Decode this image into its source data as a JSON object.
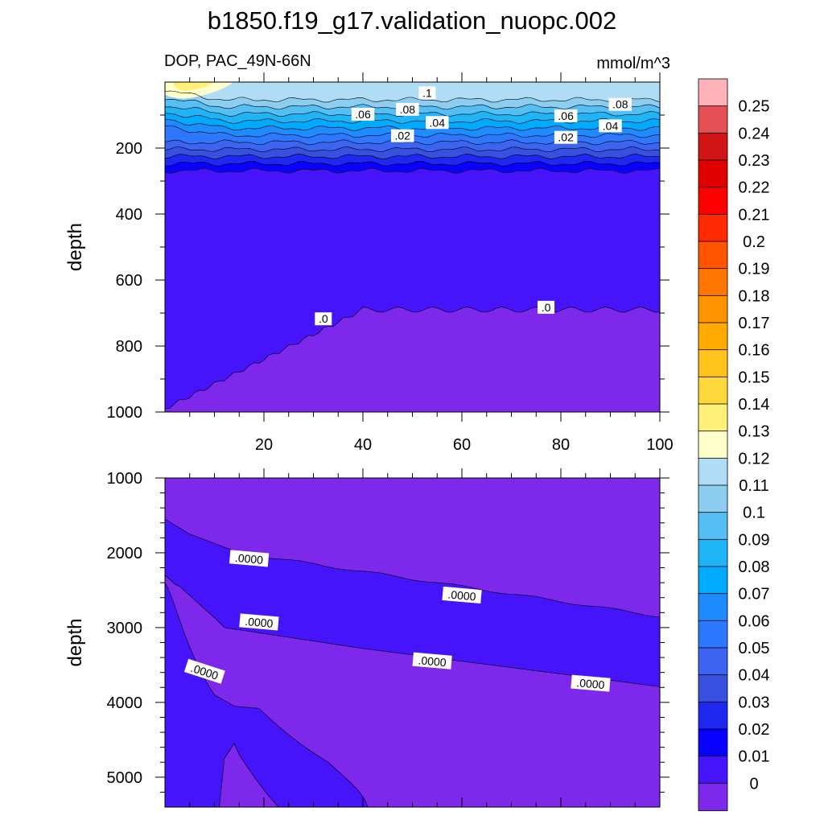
{
  "figure_title": "b1850.f19_g17.validation_nuopc.002",
  "panel_label": "DOP, PAC_49N-66N",
  "units": "mmol/m^3",
  "chart_data": [
    {
      "type": "heatmap",
      "panel": "upper",
      "title": "DOP, PAC_49N-66N",
      "units": "mmol/m^3",
      "xlabel": "",
      "ylabel": "depth",
      "xlim": [
        0,
        100
      ],
      "ylim": [
        1000,
        0
      ],
      "y_inverted": true,
      "xticks": [
        "20",
        "40",
        "60",
        "80",
        "100"
      ],
      "yticks": [
        "200",
        "400",
        "600",
        "800",
        "1000"
      ],
      "contour_levels": [
        0,
        0.01,
        0.02,
        0.03,
        0.04,
        0.05,
        0.06,
        0.07,
        0.08,
        0.09,
        0.1,
        0.11,
        0.12,
        0.13,
        0.14
      ],
      "contour_labels": [
        {
          "text": ".1",
          "x": 53,
          "y": 35
        },
        {
          "text": ".08",
          "x": 92,
          "y": 70
        },
        {
          "text": ".06",
          "x": 40,
          "y": 100
        },
        {
          "text": ".08",
          "x": 49,
          "y": 85
        },
        {
          "text": ".06",
          "x": 81,
          "y": 105
        },
        {
          "text": ".04",
          "x": 55,
          "y": 125
        },
        {
          "text": ".04",
          "x": 90,
          "y": 135
        },
        {
          "text": ".02",
          "x": 48,
          "y": 165
        },
        {
          "text": ".02",
          "x": 81,
          "y": 170
        },
        {
          "text": ".0",
          "x": 32,
          "y": 720
        },
        {
          "text": ".0",
          "x": 77,
          "y": 685
        }
      ],
      "profile_at_x60": [
        {
          "depth": 20,
          "value": 0.115
        },
        {
          "depth": 60,
          "value": 0.09
        },
        {
          "depth": 100,
          "value": 0.065
        },
        {
          "depth": 140,
          "value": 0.04
        },
        {
          "depth": 190,
          "value": 0.02
        },
        {
          "depth": 240,
          "value": 0.01
        },
        {
          "depth": 400,
          "value": 0.005
        },
        {
          "depth": 700,
          "value": 0.0
        }
      ]
    },
    {
      "type": "heatmap",
      "panel": "lower",
      "xlabel": "",
      "ylabel": "depth",
      "xlim": [
        0,
        100
      ],
      "ylim": [
        5400,
        1000
      ],
      "y_inverted": true,
      "yticks": [
        "1000",
        "2000",
        "3000",
        "4000",
        "5000"
      ],
      "contour_labels": [
        {
          "text": ".0000",
          "x": 17,
          "y": 2080
        },
        {
          "text": ".0000",
          "x": 60,
          "y": 2570
        },
        {
          "text": ".0000",
          "x": 19,
          "y": 2930
        },
        {
          "text": ".0000",
          "x": 54,
          "y": 3450
        },
        {
          "text": ".0000",
          "x": 86,
          "y": 3750
        },
        {
          "text": ".0000",
          "x": 8,
          "y": 3590
        }
      ]
    }
  ],
  "colorbar": {
    "labels": [
      "0.25",
      "0.24",
      "0.23",
      "0.22",
      "0.21",
      "0.2",
      "0.19",
      "0.18",
      "0.17",
      "0.16",
      "0.15",
      "0.14",
      "0.13",
      "0.12",
      "0.11",
      "0.1",
      "0.09",
      "0.08",
      "0.07",
      "0.06",
      "0.05",
      "0.04",
      "0.03",
      "0.02",
      "0.01",
      "0"
    ],
    "colors": [
      "#ffb3b8",
      "#e55055",
      "#d21515",
      "#e00000",
      "#ff0000",
      "#ff2a00",
      "#ff5500",
      "#ff7700",
      "#ff9400",
      "#ffab00",
      "#ffc31e",
      "#ffd93c",
      "#fff07a",
      "#ffffcc",
      "#b0dcf5",
      "#8ccdf0",
      "#55bef5",
      "#1eb4f5",
      "#00aaff",
      "#1e8cff",
      "#2d78ff",
      "#3c64f0",
      "#3750e0",
      "#1e28f0",
      "#0a00ff",
      "#4614fa",
      "#7d28eb"
    ]
  }
}
